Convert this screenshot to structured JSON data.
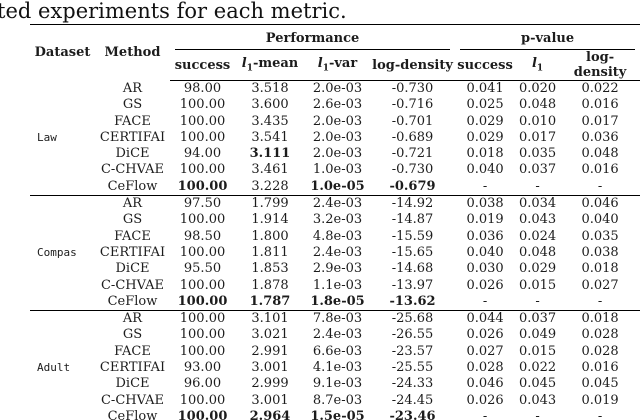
{
  "caption": "ted experiments for each metric.",
  "table": {
    "col_headers": {
      "dataset": "Dataset",
      "method": "Method",
      "performance": "Performance",
      "p_value": "p-value"
    },
    "sub_headers": [
      "success",
      "l₁-mean",
      "l₁-var",
      "log-density",
      "success",
      "l₁",
      "log-density"
    ],
    "groups": [
      {
        "dataset": "Law",
        "rows": [
          {
            "method": "AR",
            "values": [
              "98.00",
              "3.518",
              "2.0e-03",
              "-0.730",
              "0.041",
              "0.020",
              "0.022"
            ],
            "bold": []
          },
          {
            "method": "GS",
            "values": [
              "100.00",
              "3.600",
              "2.6e-03",
              "-0.716",
              "0.025",
              "0.048",
              "0.016"
            ],
            "bold": []
          },
          {
            "method": "FACE",
            "values": [
              "100.00",
              "3.435",
              "2.0e-03",
              "-0.701",
              "0.029",
              "0.010",
              "0.017"
            ],
            "bold": []
          },
          {
            "method": "CERTIFAI",
            "values": [
              "100.00",
              "3.541",
              "2.0e-03",
              "-0.689",
              "0.029",
              "0.017",
              "0.036"
            ],
            "bold": []
          },
          {
            "method": "DiCE",
            "values": [
              "94.00",
              "3.111",
              "2.0e-03",
              "-0.721",
              "0.018",
              "0.035",
              "0.048"
            ],
            "bold": [
              1
            ]
          },
          {
            "method": "C-CHVAE",
            "values": [
              "100.00",
              "3.461",
              "1.0e-03",
              "-0.730",
              "0.040",
              "0.037",
              "0.016"
            ],
            "bold": []
          },
          {
            "method": "CeFlow",
            "values": [
              "100.00",
              "3.228",
              "1.0e-05",
              "-0.679",
              "-",
              "-",
              "-"
            ],
            "bold": [
              0,
              2,
              3
            ]
          }
        ]
      },
      {
        "dataset": "Compas",
        "rows": [
          {
            "method": "AR",
            "values": [
              "97.50",
              "1.799",
              "2.4e-03",
              "-14.92",
              "0.038",
              "0.034",
              "0.046"
            ],
            "bold": []
          },
          {
            "method": "GS",
            "values": [
              "100.00",
              "1.914",
              "3.2e-03",
              "-14.87",
              "0.019",
              "0.043",
              "0.040"
            ],
            "bold": []
          },
          {
            "method": "FACE",
            "values": [
              "98.50",
              "1.800",
              "4.8e-03",
              "-15.59",
              "0.036",
              "0.024",
              "0.035"
            ],
            "bold": []
          },
          {
            "method": "CERTIFAI",
            "values": [
              "100.00",
              "1.811",
              "2.4e-03",
              "-15.65",
              "0.040",
              "0.048",
              "0.038"
            ],
            "bold": []
          },
          {
            "method": "DiCE",
            "values": [
              "95.50",
              "1.853",
              "2.9e-03",
              "-14.68",
              "0.030",
              "0.029",
              "0.018"
            ],
            "bold": []
          },
          {
            "method": "C-CHVAE",
            "values": [
              "100.00",
              "1.878",
              "1.1e-03",
              "-13.97",
              "0.026",
              "0.015",
              "0.027"
            ],
            "bold": []
          },
          {
            "method": "CeFlow",
            "values": [
              "100.00",
              "1.787",
              "1.8e-05",
              "-13.62",
              "-",
              "-",
              "-"
            ],
            "bold": [
              0,
              1,
              2,
              3
            ]
          }
        ]
      },
      {
        "dataset": "Adult",
        "rows": [
          {
            "method": "AR",
            "values": [
              "100.00",
              "3.101",
              "7.8e-03",
              "-25.68",
              "0.044",
              "0.037",
              "0.018"
            ],
            "bold": []
          },
          {
            "method": "GS",
            "values": [
              "100.00",
              "3.021",
              "2.4e-03",
              "-26.55",
              "0.026",
              "0.049",
              "0.028"
            ],
            "bold": []
          },
          {
            "method": "FACE",
            "values": [
              "100.00",
              "2.991",
              "6.6e-03",
              "-23.57",
              "0.027",
              "0.015",
              "0.028"
            ],
            "bold": []
          },
          {
            "method": "CERTIFAI",
            "values": [
              "93.00",
              "3.001",
              "4.1e-03",
              "-25.55",
              "0.028",
              "0.022",
              "0.016"
            ],
            "bold": []
          },
          {
            "method": "DiCE",
            "values": [
              "96.00",
              "2.999",
              "9.1e-03",
              "-24.33",
              "0.046",
              "0.045",
              "0.045"
            ],
            "bold": []
          },
          {
            "method": "C-CHVAE",
            "values": [
              "100.00",
              "3.001",
              "8.7e-03",
              "-24.45",
              "0.026",
              "0.043",
              "0.019"
            ],
            "bold": []
          },
          {
            "method": "CeFlow",
            "values": [
              "100.00",
              "2.964",
              "1.5e-05",
              "-23.46",
              "-",
              "-",
              "-"
            ],
            "bold": [
              0,
              1,
              2,
              3
            ]
          }
        ]
      }
    ]
  }
}
